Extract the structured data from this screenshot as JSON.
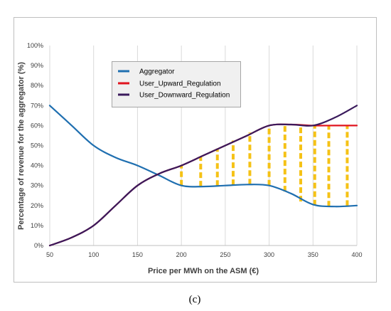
{
  "caption": "(c)",
  "chart_data": {
    "type": "line",
    "xlabel": "Price per MWh on the ASM (€)",
    "ylabel": "Percentage of revenue for the aggregator (%)",
    "xlim": [
      50,
      400
    ],
    "ylim": [
      0,
      100
    ],
    "x_ticks": [
      50,
      100,
      150,
      200,
      250,
      300,
      350,
      400
    ],
    "x_tick_labels": [
      "50",
      "100",
      "150",
      "200",
      "250",
      "300",
      "350",
      "400"
    ],
    "y_ticks": [
      0,
      10,
      20,
      30,
      40,
      50,
      60,
      70,
      80,
      90,
      100
    ],
    "y_tick_labels": [
      "0%",
      "10%",
      "20%",
      "30%",
      "40%",
      "50%",
      "60%",
      "70%",
      "80%",
      "90%",
      "100%"
    ],
    "grid": "vertical",
    "legend_position": "top-left",
    "series": [
      {
        "name": "Aggregator",
        "color": "#1f6fb0",
        "x": [
          50,
          75,
          100,
          125,
          150,
          175,
          200,
          225,
          250,
          275,
          300,
          325,
          350,
          375,
          400
        ],
        "y": [
          70,
          60,
          50,
          44,
          40,
          35,
          30,
          29.5,
          30,
          30.5,
          30,
          26,
          20.5,
          19.5,
          20
        ]
      },
      {
        "name": "User_Upward_Regulation",
        "color": "#e0141e",
        "x": [
          50,
          75,
          100,
          125,
          150,
          175,
          200,
          225,
          250,
          275,
          300,
          325,
          350,
          375,
          400
        ],
        "y": [
          0,
          4,
          10,
          20,
          30,
          36,
          40,
          45,
          50,
          55,
          60,
          60.5,
          60,
          60,
          60
        ]
      },
      {
        "name": "User_Downward_Regulation",
        "color": "#3a1a5c",
        "x": [
          50,
          75,
          100,
          125,
          150,
          175,
          200,
          225,
          250,
          275,
          300,
          325,
          350,
          375,
          400
        ],
        "y": [
          0,
          4,
          10,
          20,
          30,
          36,
          40,
          45,
          50,
          55,
          60,
          60.5,
          60,
          64,
          70
        ]
      }
    ],
    "shaded_band": {
      "color": "#f5c216",
      "x": [
        200,
        222,
        241,
        259,
        278,
        300,
        318,
        336,
        352,
        368,
        389
      ],
      "low": [
        30,
        29.5,
        29.8,
        30.2,
        30.5,
        30,
        27,
        22,
        20,
        19.5,
        19.8
      ],
      "high": [
        40,
        44.5,
        48.5,
        52.5,
        56.5,
        60,
        60.5,
        60.2,
        60,
        60,
        60
      ]
    }
  }
}
